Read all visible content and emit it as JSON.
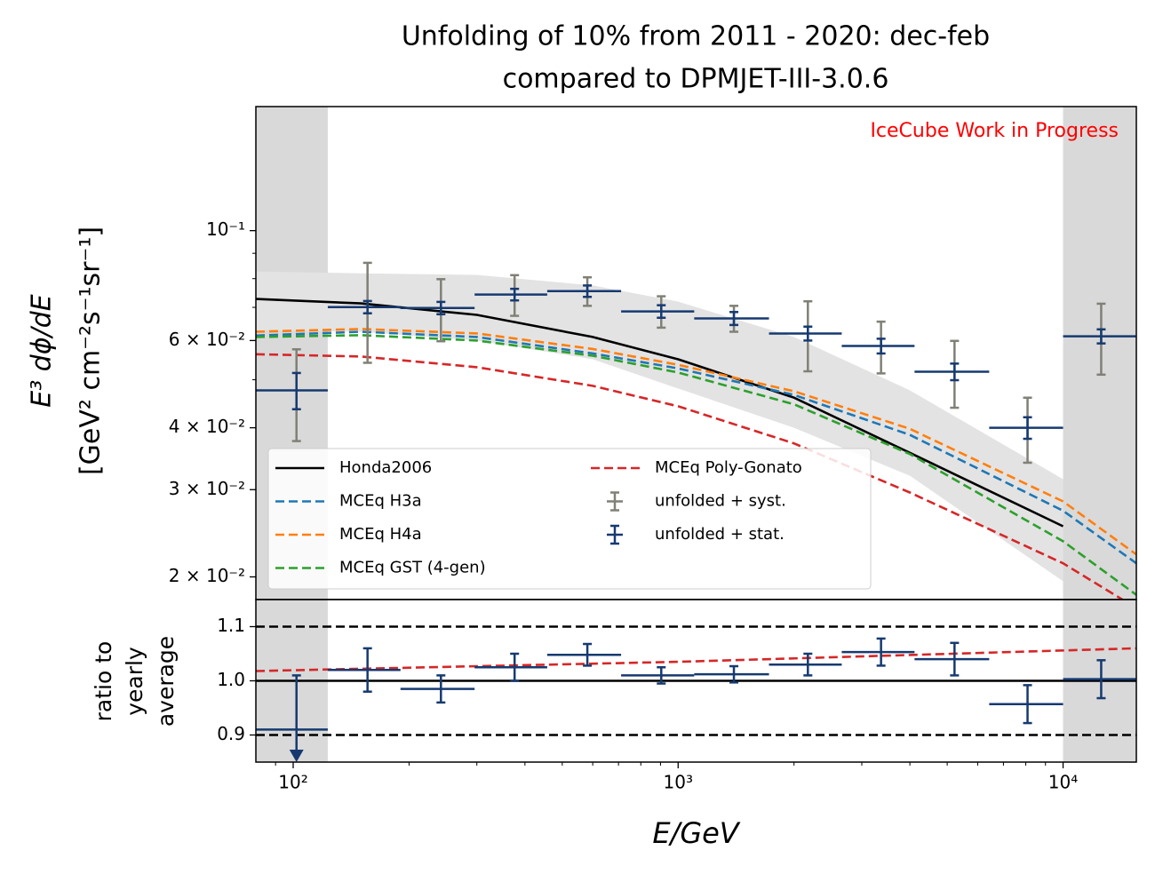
{
  "chart_data": [
    {
      "type": "errorbar",
      "title": [
        "Unfolding of 10% from 2011 - 2020: dec-feb",
        "compared to DPMJET-III-3.0.6"
      ],
      "annotation": "IceCube Work in Progress",
      "annotation_color": "#ff0000",
      "ylabel": [
        "E³ dϕ/dE",
        "[GeV² cm⁻²s⁻¹sr⁻¹]"
      ],
      "log_y": true,
      "ylim": [
        0.018,
        0.178
      ],
      "yticks": [
        {
          "value": 0.1,
          "label": "10⁻¹"
        },
        {
          "value": 0.06,
          "label": "6 × 10⁻²"
        },
        {
          "value": 0.04,
          "label": "4 × 10⁻²"
        },
        {
          "value": 0.03,
          "label": "3 × 10⁻²"
        },
        {
          "value": 0.02,
          "label": "2 × 10⁻²"
        }
      ],
      "yticks_minor": [
        0.05,
        0.07,
        0.08,
        0.09
      ],
      "shaded_x": [
        [
          80,
          123
        ],
        [
          10000,
          15500
        ]
      ],
      "shaded_color": "#d9d9d9",
      "bins": [
        80,
        123,
        190,
        296,
        457,
        711,
        1101,
        1722,
        2661,
        4113,
        6428,
        10000,
        15450
      ],
      "x": [
        102,
        156,
        242,
        376,
        581,
        904,
        1396,
        2173,
        3366,
        5224,
        8085,
        12560
      ],
      "series": [
        {
          "name": "unfolded + syst.",
          "color": "#808076",
          "xerr": false,
          "values": [
            0.0476,
            0.0701,
            0.0698,
            0.0743,
            0.0755,
            0.0687,
            0.0665,
            0.062,
            0.0585,
            0.0519,
            0.04,
            0.0612
          ],
          "errors": [
            0.01,
            0.016,
            0.01,
            0.007,
            0.005,
            0.005,
            0.004,
            0.01,
            0.007,
            0.008,
            0.006,
            0.01
          ]
        },
        {
          "name": "unfolded + stat.",
          "color": "#163a70",
          "xerr": true,
          "values": [
            0.0476,
            0.0701,
            0.0698,
            0.0743,
            0.0755,
            0.0687,
            0.0665,
            0.062,
            0.0585,
            0.0519,
            0.04,
            0.0612
          ],
          "errors": [
            0.004,
            0.002,
            0.002,
            0.002,
            0.002,
            0.002,
            0.002,
            0.002,
            0.002,
            0.002,
            0.002,
            0.002
          ]
        }
      ],
      "curve_x": [
        80,
        150,
        300,
        600,
        1000,
        2000,
        4000,
        10000,
        15500
      ],
      "band": {
        "color": "#e3e3e3",
        "upper": [
          0.0827,
          0.082,
          0.0814,
          0.0775,
          0.0719,
          0.061,
          0.0476,
          0.0315,
          null
        ],
        "lower": [
          0.063,
          0.0625,
          0.06,
          0.055,
          0.048,
          0.04,
          0.032,
          0.0196,
          null
        ]
      },
      "curves": [
        {
          "name": "Honda2006",
          "color": "#000000",
          "style": "solid",
          "values": [
            0.0728,
            0.0713,
            0.0676,
            0.061,
            0.055,
            0.046,
            0.0356,
            0.0253,
            null
          ]
        },
        {
          "name": "MCEq H3a",
          "color": "#1f77b4",
          "style": "dashed",
          "values": [
            0.0614,
            0.0625,
            0.061,
            0.0565,
            0.0527,
            0.0466,
            0.0387,
            0.0272,
            0.0213
          ]
        },
        {
          "name": "MCEq H4a",
          "color": "#ff7f0e",
          "style": "dashed",
          "values": [
            0.0625,
            0.0633,
            0.062,
            0.0577,
            0.0536,
            0.0474,
            0.0398,
            0.0284,
            0.0222
          ]
        },
        {
          "name": "MCEq GST (4-gen)",
          "color": "#2ca02c",
          "style": "dashed",
          "values": [
            0.061,
            0.0615,
            0.06,
            0.0559,
            0.0517,
            0.0446,
            0.0354,
            0.0236,
            0.0184
          ]
        },
        {
          "name": "MCEq Poly-Gonato",
          "color": "#d62728",
          "style": "dashed",
          "values": [
            0.0563,
            0.0557,
            0.053,
            0.0486,
            0.0442,
            0.0372,
            0.0296,
            0.0213,
            0.0173
          ]
        }
      ],
      "legend": "lower left"
    },
    {
      "type": "errorbar",
      "ylabel": [
        "ratio to",
        "yearly",
        "average"
      ],
      "xlabel": "E/GeV",
      "log_x": true,
      "xlim": [
        80,
        15500
      ],
      "xticks": [
        {
          "value": 100,
          "label": "10²"
        },
        {
          "value": 1000,
          "label": "10³"
        },
        {
          "value": 10000,
          "label": "10⁴"
        }
      ],
      "xticks_minor": [
        90,
        200,
        300,
        400,
        500,
        600,
        700,
        800,
        900,
        2000,
        3000,
        4000,
        5000,
        6000,
        7000,
        8000,
        9000
      ],
      "ylim": [
        0.85,
        1.15
      ],
      "yticks": [
        0.9,
        {
          "value": 1.0,
          "label": "1.0"
        },
        1.1
      ],
      "hlines": [
        {
          "y": 1.1,
          "style": "dashed"
        },
        {
          "y": 1.0,
          "style": "solid"
        },
        {
          "y": 0.9,
          "style": "dashed"
        }
      ],
      "series": [
        {
          "color": "#163a70",
          "values": [
            0.91,
            1.02,
            0.985,
            1.025,
            1.048,
            1.01,
            1.012,
            1.03,
            1.053,
            1.04,
            0.957,
            1.003
          ],
          "errors": [
            0.1,
            0.04,
            0.025,
            0.025,
            0.02,
            0.015,
            0.015,
            0.02,
            0.025,
            0.03,
            0.035,
            0.035
          ],
          "lower_limit": [
            true,
            false,
            false,
            false,
            false,
            false,
            false,
            false,
            false,
            false,
            false,
            false
          ]
        }
      ],
      "curve": {
        "color": "#d62728",
        "style": "dashed",
        "x": [
          80,
          1000,
          15500
        ],
        "values": [
          1.018,
          1.035,
          1.06
        ]
      }
    }
  ]
}
